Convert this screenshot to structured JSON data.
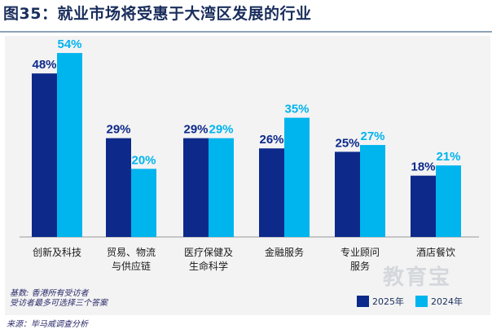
{
  "title": "图35：就业市场将受惠于大湾区发展的行业",
  "notes": [
    "基数: 香港所有受访者",
    "受访者最多可选择三个答案"
  ],
  "source": "来源：毕马威调查分析",
  "watermark": "教育宝",
  "colors": {
    "dark": "#0d2a8a",
    "light": "#00b4ee",
    "axis": "#9a9a9a"
  },
  "chart_data": {
    "type": "bar",
    "unit": "%",
    "ylim": [
      0,
      60
    ],
    "grid": false,
    "legend_position": "bottom-right",
    "categories": [
      [
        "创新及科技"
      ],
      [
        "贸易、物流",
        "与供应链"
      ],
      [
        "医疗保健及",
        "生命科学"
      ],
      [
        "金融服务"
      ],
      [
        "专业顾问",
        "服务"
      ],
      [
        "酒店餐饮"
      ]
    ],
    "series": [
      {
        "name": "2025年",
        "values": [
          48,
          29,
          29,
          26,
          25,
          18
        ]
      },
      {
        "name": "2024年",
        "values": [
          54,
          20,
          29,
          35,
          27,
          21
        ]
      }
    ]
  }
}
